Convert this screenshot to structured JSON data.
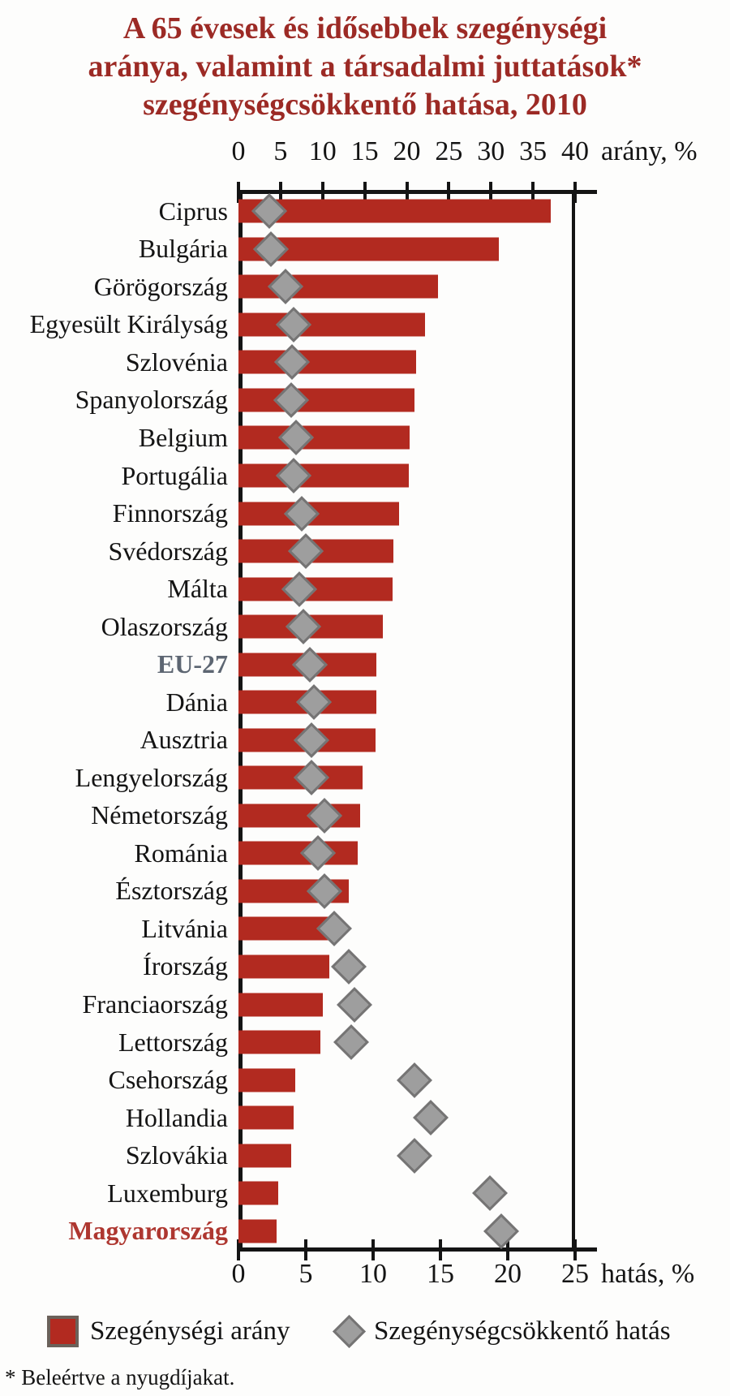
{
  "title": {
    "lines": [
      "A 65 évesek és idősebbek szegénységi",
      "aránya, valamint a társadalmi juttatások*",
      "szegénységcsökkentő hatása, 2010"
    ]
  },
  "axes": {
    "top": {
      "label": "arány, %",
      "ticks": [
        0,
        5,
        10,
        15,
        20,
        25,
        30,
        35,
        40
      ],
      "max": 40
    },
    "bottom": {
      "label": "hatás, %",
      "ticks": [
        0,
        5,
        10,
        15,
        20,
        25
      ],
      "max": 25
    }
  },
  "legend": {
    "items": [
      {
        "label": "Szegénységi arány",
        "marker": "red-square-icon"
      },
      {
        "label": "Szegénységcsökkentő hatás",
        "marker": "gray-diamond-icon"
      }
    ]
  },
  "footnote": "* Beleértve a nyugdíjakat.",
  "colors": {
    "title": "#9c2a25",
    "bar": "#b22a20",
    "diamond_fill": "#9e9e9e",
    "diamond_border": "#757474",
    "legend_square_border": "#6b615a",
    "axis": "#141414",
    "label_default": "#141414",
    "label_eu27": "#5d6672",
    "label_hungary": "#ae3730"
  },
  "chart_data": {
    "type": "bar",
    "orientation": "horizontal",
    "title": "A 65 évesek és idősebbek szegénységi aránya, valamint a társadalmi juttatások* szegénységcsökkentő hatása, 2010",
    "grid": false,
    "legend_position": "bottom",
    "footnote": "* Beleértve a nyugdíjakat.",
    "categories": [
      "Ciprus",
      "Bulgária",
      "Görögország",
      "Egyesült Királyság",
      "Szlovénia",
      "Spanyolország",
      "Belgium",
      "Portugália",
      "Finnország",
      "Svédország",
      "Málta",
      "Olaszország",
      "EU-27",
      "Dánia",
      "Ausztria",
      "Lengyelország",
      "Németország",
      "Románia",
      "Észtország",
      "Litvánia",
      "Írország",
      "Franciaország",
      "Lettország",
      "Csehország",
      "Hollandia",
      "Szlovákia",
      "Luxemburg",
      "Magyarország"
    ],
    "series": [
      {
        "name": "Szegénységi arány",
        "style": "red-bar",
        "axis": "top",
        "unit": "arány, %",
        "range": [
          0,
          40
        ],
        "values": [
          37.1,
          30.9,
          23.7,
          22.2,
          21.1,
          20.9,
          20.3,
          20.2,
          19.1,
          18.4,
          18.3,
          17.2,
          16.4,
          16.4,
          16.3,
          14.7,
          14.5,
          14.2,
          13.1,
          10.9,
          10.8,
          10.0,
          9.7,
          6.7,
          6.6,
          6.3,
          4.7,
          4.5
        ]
      },
      {
        "name": "Szegénységcsökkentő hatás",
        "style": "gray-diamond",
        "axis": "bottom",
        "unit": "hatás, %",
        "range": [
          0,
          25
        ],
        "values": [
          2.3,
          2.4,
          3.5,
          4.1,
          4.0,
          3.9,
          4.3,
          4.1,
          4.7,
          5.0,
          4.5,
          4.8,
          5.3,
          5.6,
          5.4,
          5.4,
          6.4,
          5.9,
          6.4,
          7.1,
          8.2,
          8.6,
          8.4,
          13.1,
          14.3,
          13.1,
          18.7,
          19.5
        ]
      }
    ],
    "category_label_colors": {
      "EU-27": "#5d6672",
      "Magyarország": "#ae3730"
    }
  }
}
